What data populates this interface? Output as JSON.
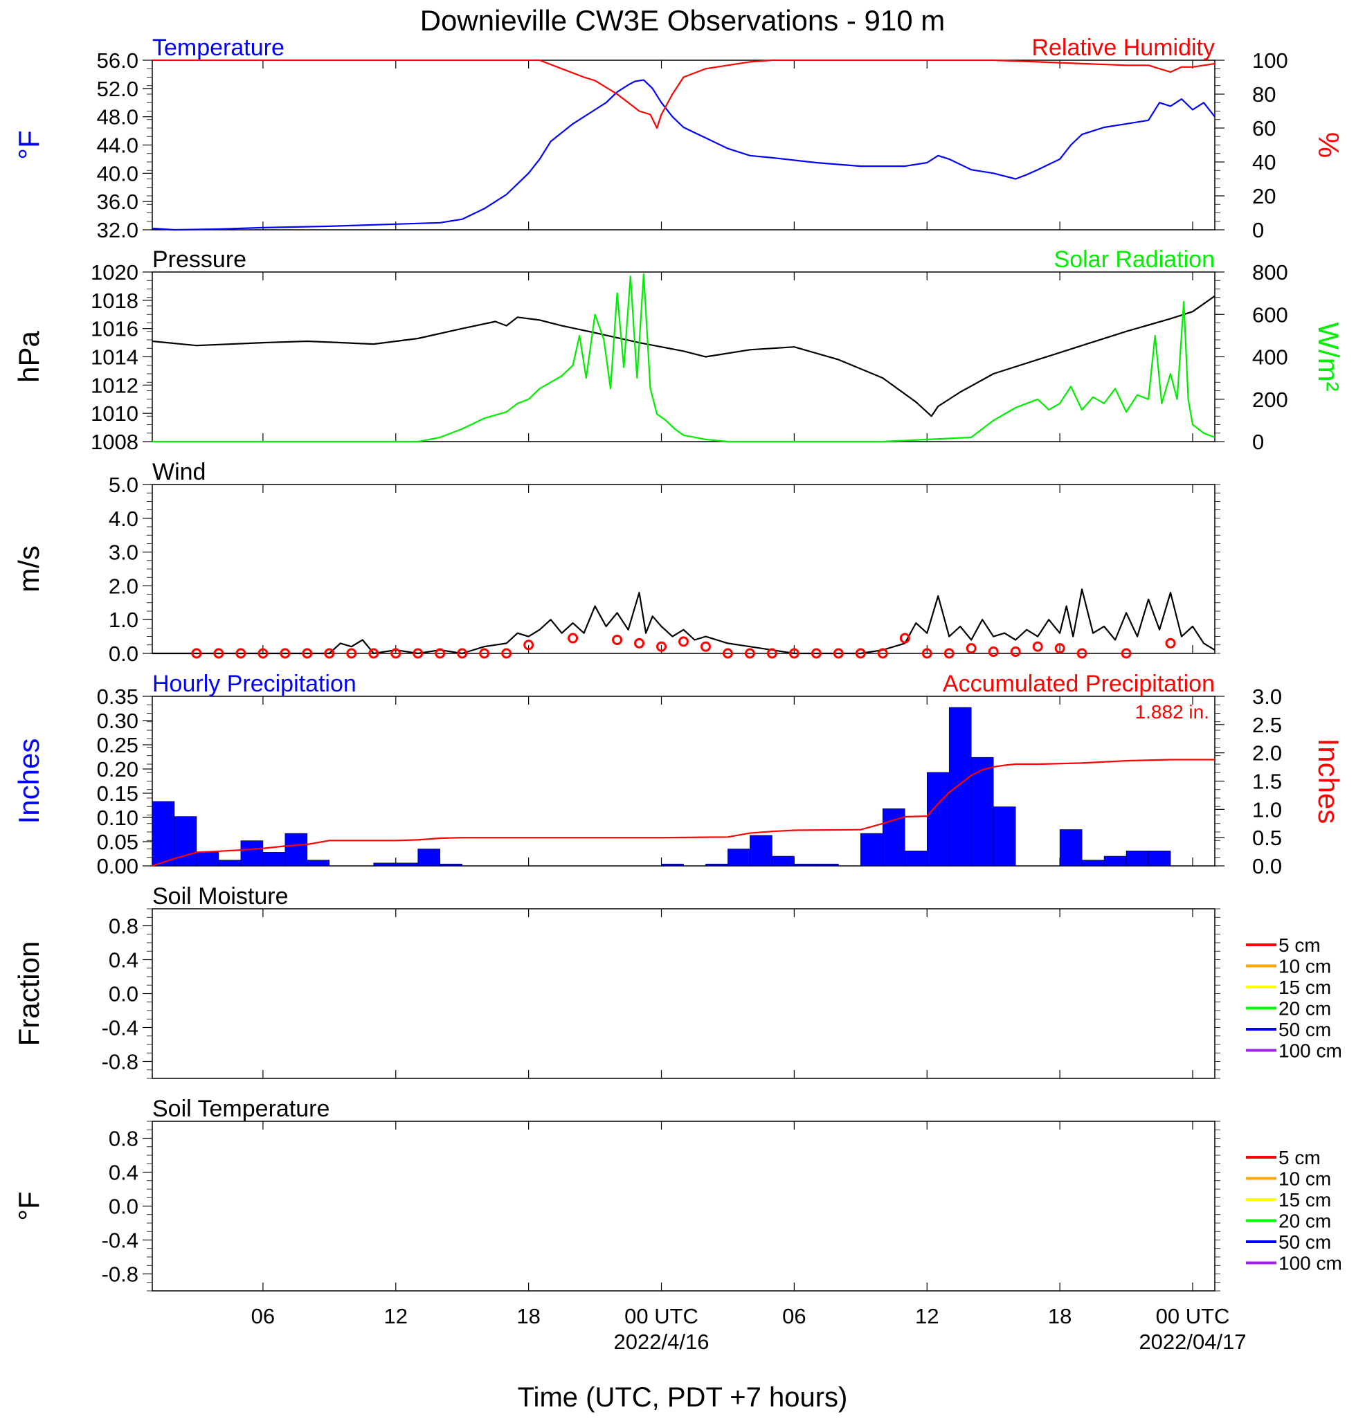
{
  "title": "Downieville CW3E Observations - 910 m",
  "xlabel": "Time (UTC, PDT +7 hours)",
  "x_axis": {
    "range_hours": [
      0,
      48
    ],
    "ticks": [
      {
        "h": 5,
        "label": "06",
        "date": ""
      },
      {
        "h": 11,
        "label": "12",
        "date": ""
      },
      {
        "h": 17,
        "label": "18",
        "date": ""
      },
      {
        "h": 23,
        "label": "00 UTC",
        "date": "2022/4/16"
      },
      {
        "h": 29,
        "label": "06",
        "date": ""
      },
      {
        "h": 35,
        "label": "12",
        "date": ""
      },
      {
        "h": 41,
        "label": "18",
        "date": ""
      },
      {
        "h": 47,
        "label": "00 UTC",
        "date": "2022/04/17"
      }
    ]
  },
  "legend_depths": [
    "5 cm",
    "10 cm",
    "15 cm",
    "20 cm",
    "50 cm",
    "100 cm"
  ],
  "colors": {
    "temperature": "#0000ff",
    "humidity": "#ff0000",
    "pressure": "#000000",
    "solar": "#00ee00",
    "wind": "#000000",
    "wind_marker": "#ff0000",
    "precip_bar": "#0000ff",
    "accum": "#ff0000",
    "depths": [
      "#ff0000",
      "#ffa500",
      "#ffff00",
      "#00ff00",
      "#0000ff",
      "#a020f0"
    ]
  },
  "chart_data": [
    {
      "id": "temp_rh",
      "type": "line",
      "title_left": "Temperature",
      "title_right": "Relative Humidity",
      "ylabel_left": "°F",
      "ylabel_right": "%",
      "ylim_left": [
        32,
        56
      ],
      "ylim_right": [
        0,
        100
      ],
      "yticks_left": [
        "32.0",
        "36.0",
        "40.0",
        "44.0",
        "48.0",
        "52.0",
        "56.0"
      ],
      "yticks_right": [
        "0",
        "20",
        "40",
        "60",
        "80",
        "100"
      ],
      "series": [
        {
          "name": "Temperature",
          "axis": "left",
          "color": "#0000ff",
          "x": [
            0,
            1,
            3,
            5,
            8,
            11,
            13,
            14,
            15,
            16,
            16.5,
            17,
            17.5,
            18,
            19,
            20,
            20.5,
            21,
            21.5,
            21.8,
            22.2,
            22.6,
            23,
            23.5,
            24,
            25,
            26,
            27,
            28,
            30,
            32,
            34,
            35,
            35.5,
            36,
            37,
            38,
            39,
            39.5,
            40,
            41,
            41.5,
            42,
            42.5,
            43,
            44,
            45,
            45.5,
            46,
            46.5,
            47,
            47.5,
            48
          ],
          "y": [
            32.2,
            32.0,
            32.1,
            32.3,
            32.5,
            32.8,
            33.0,
            33.5,
            35.0,
            37.0,
            38.5,
            40.0,
            42.0,
            44.5,
            47.0,
            49.0,
            50.0,
            51.5,
            52.5,
            53.0,
            53.2,
            52.0,
            50.0,
            48.0,
            46.5,
            45.0,
            43.5,
            42.5,
            42.2,
            41.5,
            41.0,
            41.0,
            41.5,
            42.5,
            42.0,
            40.5,
            40.0,
            39.2,
            39.8,
            40.5,
            42.0,
            44.0,
            45.5,
            46.0,
            46.5,
            47.0,
            47.5,
            50.0,
            49.5,
            50.5,
            49.0,
            50.0,
            48.0
          ]
        },
        {
          "name": "Relative Humidity",
          "axis": "right",
          "color": "#ff0000",
          "x": [
            0,
            17.5,
            18.5,
            19.5,
            20,
            20.5,
            21,
            21.5,
            22,
            22.5,
            22.8,
            23,
            23.5,
            24,
            25,
            26,
            27,
            28,
            30,
            35,
            38,
            40,
            42,
            44,
            45,
            45.5,
            46,
            46.5,
            47,
            48
          ],
          "y": [
            100,
            100,
            95,
            90,
            88,
            84,
            80,
            75,
            70,
            68,
            60,
            68,
            80,
            90,
            95,
            97,
            99,
            100,
            100,
            100,
            100,
            99,
            98,
            97,
            97,
            95,
            93,
            96,
            96,
            98
          ]
        }
      ]
    },
    {
      "id": "pressure_solar",
      "type": "line",
      "title_left": "Pressure",
      "title_right": "Solar Radiation",
      "ylabel_left": "hPa",
      "ylabel_right": "W/m²",
      "ylim_left": [
        1008,
        1020
      ],
      "ylim_right": [
        0,
        800
      ],
      "yticks_left": [
        "1008",
        "1010",
        "1012",
        "1014",
        "1016",
        "1018",
        "1020"
      ],
      "yticks_right": [
        "0",
        "200",
        "400",
        "600",
        "800"
      ],
      "series": [
        {
          "name": "Pressure",
          "axis": "left",
          "color": "#000000",
          "x": [
            0,
            2,
            5,
            7,
            10,
            12,
            14,
            15.5,
            16,
            16.5,
            17.5,
            18.5,
            20,
            22,
            24,
            25,
            27,
            29,
            31,
            33,
            34.5,
            35.2,
            35.5,
            36.5,
            38,
            40,
            42,
            44,
            46,
            47,
            48
          ],
          "y": [
            1015.1,
            1014.8,
            1015.0,
            1015.1,
            1014.9,
            1015.3,
            1016.0,
            1016.5,
            1016.2,
            1016.8,
            1016.6,
            1016.2,
            1015.7,
            1015.0,
            1014.4,
            1014.0,
            1014.5,
            1014.7,
            1013.8,
            1012.5,
            1010.8,
            1009.8,
            1010.5,
            1011.5,
            1012.8,
            1013.8,
            1014.8,
            1015.8,
            1016.7,
            1017.2,
            1018.3
          ]
        },
        {
          "name": "Solar Radiation",
          "axis": "right",
          "color": "#00ee00",
          "x": [
            0,
            12,
            13,
            14,
            15,
            16,
            16.5,
            17,
            17.5,
            18,
            18.5,
            19,
            19.3,
            19.6,
            20,
            20.4,
            20.7,
            21,
            21.3,
            21.6,
            21.9,
            22.2,
            22.5,
            22.8,
            23.2,
            23.6,
            24,
            25,
            26,
            29,
            33,
            37,
            38,
            39,
            40,
            40.5,
            41,
            41.5,
            42,
            42.5,
            43,
            43.5,
            44,
            44.5,
            45,
            45.3,
            45.6,
            46,
            46.3,
            46.6,
            46.8,
            47,
            47.5,
            48
          ],
          "y": [
            0,
            0,
            20,
            60,
            110,
            140,
            180,
            200,
            250,
            280,
            310,
            360,
            500,
            300,
            600,
            480,
            250,
            700,
            350,
            780,
            300,
            790,
            250,
            130,
            100,
            60,
            30,
            10,
            0,
            0,
            0,
            20,
            100,
            160,
            200,
            150,
            180,
            260,
            150,
            210,
            180,
            250,
            140,
            220,
            200,
            500,
            180,
            320,
            200,
            660,
            200,
            80,
            40,
            20
          ]
        }
      ]
    },
    {
      "id": "wind",
      "type": "line",
      "title_left": "Wind",
      "ylabel_left": "m/s",
      "ylim_left": [
        0,
        5
      ],
      "yticks_left": [
        "0.0",
        "1.0",
        "2.0",
        "3.0",
        "4.0",
        "5.0"
      ],
      "series": [
        {
          "name": "",
          "axis": "left",
          "color": "#000000",
          "x": [
            0,
            8,
            8.5,
            9,
            9.5,
            10,
            11,
            12,
            13,
            14,
            15,
            16,
            16.5,
            17,
            17.5,
            18,
            18.5,
            19,
            19.5,
            20,
            20.5,
            21,
            21.5,
            22,
            22.3,
            22.6,
            23,
            23.5,
            24,
            24.5,
            25,
            26,
            27,
            28,
            29,
            30,
            31,
            32,
            33,
            34,
            34.5,
            35,
            35.5,
            36,
            36.5,
            37,
            37.5,
            38,
            38.5,
            39,
            39.5,
            40,
            40.5,
            41,
            41.3,
            41.6,
            42,
            42.5,
            43,
            43.5,
            44,
            44.5,
            45,
            45.5,
            46,
            46.5,
            47,
            47.5,
            48
          ],
          "y": [
            0,
            0,
            0.3,
            0.2,
            0.4,
            0,
            0.1,
            0,
            0.1,
            0,
            0.2,
            0.3,
            0.6,
            0.5,
            0.7,
            1.0,
            0.6,
            0.9,
            0.6,
            1.4,
            0.8,
            1.2,
            0.7,
            1.8,
            0.6,
            1.1,
            0.8,
            0.5,
            0.7,
            0.4,
            0.5,
            0.3,
            0.2,
            0.1,
            0,
            0,
            0,
            0,
            0.1,
            0.3,
            0.9,
            0.6,
            1.7,
            0.5,
            0.8,
            0.4,
            1.0,
            0.5,
            0.6,
            0.4,
            0.7,
            0.5,
            1.0,
            0.6,
            1.4,
            0.5,
            1.9,
            0.6,
            0.8,
            0.4,
            1.2,
            0.5,
            1.6,
            0.7,
            1.8,
            0.5,
            0.8,
            0.3,
            0.1
          ]
        }
      ],
      "markers": {
        "name": "",
        "color": "#ff0000",
        "x": [
          2,
          3,
          4,
          5,
          6,
          7,
          8,
          9,
          10,
          11,
          12,
          13,
          14,
          15,
          16,
          17,
          19,
          21,
          22,
          23,
          24,
          25,
          26,
          27,
          28,
          29,
          30,
          31,
          32,
          33,
          34,
          35,
          36,
          37,
          38,
          39,
          40,
          41,
          42,
          44,
          46
        ],
        "y": [
          0,
          0,
          0,
          0,
          0,
          0,
          0,
          0,
          0,
          0,
          0,
          0,
          0,
          0,
          0,
          0.25,
          0.45,
          0.4,
          0.3,
          0.2,
          0.35,
          0.2,
          0,
          0,
          0,
          0,
          0,
          0,
          0,
          0,
          0.45,
          0,
          0,
          0.15,
          0.05,
          0.05,
          0.2,
          0.15,
          0,
          0,
          0.3
        ]
      }
    },
    {
      "id": "precip",
      "type": "bar",
      "title_left": "Hourly Precipitation",
      "title_right": "Accumulated Precipitation",
      "annotation": "1.882 in.",
      "ylabel_left": "Inches",
      "ylabel_right": "Inches",
      "ylim_left": [
        0,
        0.35
      ],
      "ylim_right": [
        0,
        3.0
      ],
      "yticks_left": [
        "0.00",
        "0.05",
        "0.10",
        "0.15",
        "0.20",
        "0.25",
        "0.30",
        "0.35"
      ],
      "yticks_right": [
        "0.0",
        "0.5",
        "1.0",
        "1.5",
        "2.0",
        "2.5",
        "3.0"
      ],
      "series": [
        {
          "name": "Hourly Precipitation",
          "axis": "left",
          "color": "#0000ff",
          "x": [
            0,
            1,
            2,
            3,
            4,
            5,
            6,
            7,
            10,
            11,
            12,
            13,
            23,
            25,
            26,
            27,
            28,
            29,
            30,
            32,
            33,
            34,
            35,
            36,
            37,
            38,
            41,
            42,
            43,
            44,
            45
          ],
          "values": [
            0.133,
            0.102,
            0.028,
            0.012,
            0.052,
            0.028,
            0.067,
            0.012,
            0.006,
            0.006,
            0.035,
            0.004,
            0.004,
            0.004,
            0.035,
            0.063,
            0.02,
            0.004,
            0.004,
            0.067,
            0.118,
            0.031,
            0.193,
            0.327,
            0.224,
            0.122,
            0.075,
            0.012,
            0.02,
            0.031,
            0.031
          ]
        },
        {
          "name": "Accumulated Precipitation",
          "axis": "right",
          "color": "#ff0000",
          "x": [
            0,
            1,
            2,
            3,
            4,
            5,
            6,
            7,
            8,
            10,
            11,
            12,
            13,
            14,
            22,
            23,
            26,
            27,
            28,
            29,
            32,
            33,
            34,
            35,
            35.5,
            36,
            36.5,
            37,
            37.5,
            38,
            38.5,
            39,
            40,
            42,
            44,
            46,
            48
          ],
          "y": [
            0,
            0.13,
            0.24,
            0.26,
            0.28,
            0.31,
            0.35,
            0.38,
            0.45,
            0.45,
            0.45,
            0.46,
            0.49,
            0.5,
            0.5,
            0.5,
            0.51,
            0.58,
            0.61,
            0.63,
            0.64,
            0.75,
            0.87,
            0.88,
            1.1,
            1.3,
            1.45,
            1.6,
            1.7,
            1.75,
            1.78,
            1.8,
            1.8,
            1.82,
            1.86,
            1.88,
            1.88
          ]
        }
      ]
    },
    {
      "id": "soil_moisture",
      "type": "line",
      "title_left": "Soil Moisture",
      "ylabel_left": "Fraction",
      "ylim_left": [
        -1.0,
        1.0
      ],
      "yticks_left": [
        "-0.8",
        "-0.4",
        "0.0",
        "0.4",
        "0.8"
      ],
      "series": []
    },
    {
      "id": "soil_temperature",
      "type": "line",
      "title_left": "Soil Temperature",
      "ylabel_left": "°F",
      "ylim_left": [
        -1.0,
        1.0
      ],
      "yticks_left": [
        "-0.8",
        "-0.4",
        "0.0",
        "0.4",
        "0.8"
      ],
      "series": []
    }
  ]
}
